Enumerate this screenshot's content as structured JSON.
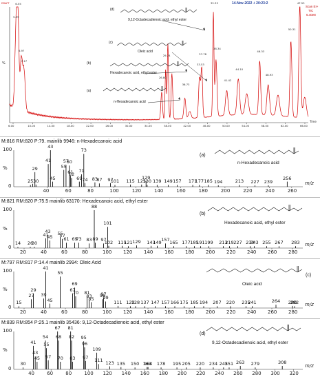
{
  "chromatogram": {
    "title_tag": "DRAFT",
    "date": "14-Nov-2022 + 20:23:2",
    "legend": [
      "Scan EI+",
      "TIC",
      "6.40e8"
    ],
    "x_ticks": [
      "6.00",
      "10.00",
      "14.00",
      "18.00",
      "22.00",
      "26.00",
      "30.00",
      "34.00",
      "38.00",
      "42.00",
      "46.00",
      "50.00",
      "54.00",
      "58.00",
      "62.00",
      "66.00"
    ],
    "x_unit": "Time",
    "y_tick": "%",
    "peak_labels": [
      {
        "t": 3.4,
        "text": "5.39"
      },
      {
        "t": 3.9,
        "text": "6.55"
      },
      {
        "t": 4.6,
        "text": "6.97"
      },
      {
        "t": 5.2,
        "text": "7.17"
      },
      {
        "t": 36.1,
        "text": "26.80"
      },
      {
        "t": 37.0,
        "text": "29.74"
      },
      {
        "t": 41.3,
        "text": "36.73"
      },
      {
        "t": 44.6,
        "text": "33.53"
      },
      {
        "t": 45.1,
        "text": "37.78"
      },
      {
        "t": 47.7,
        "text": "32.33"
      },
      {
        "t": 48.3,
        "text": "38.34"
      },
      {
        "t": 50.7,
        "text": "41.42"
      },
      {
        "t": 53.3,
        "text": "44.10"
      },
      {
        "t": 58.1,
        "text": "46.33"
      },
      {
        "t": 60.0,
        "text": "48.93"
      },
      {
        "t": 65.1,
        "text": "50.31"
      },
      {
        "t": 67.1,
        "text": "47.53"
      }
    ],
    "annotations": [
      {
        "tag": "(d)",
        "name": "9,12-Octadecadienoic acid, ethyl ester"
      },
      {
        "tag": "(c)",
        "name": "Oleic acid"
      },
      {
        "tag": "(b)",
        "name": "Hexadecanoic acid, ethyl ester"
      },
      {
        "tag": "(a)",
        "name": "n-Hexadecanoic acid"
      }
    ]
  },
  "chart_data": [
    {
      "type": "bar",
      "title": "M:816 RM:820 P:79. mainlib 9946: n-Hexadecanoic acid",
      "tag": "(a)",
      "compound": "n-Hexadecanoic acid",
      "x": [
        25,
        27,
        29,
        30,
        41,
        43,
        45,
        55,
        57,
        60,
        61,
        62,
        69,
        71,
        73,
        74,
        83,
        87,
        97,
        101,
        115,
        125,
        129,
        130,
        139,
        149,
        157,
        171,
        177,
        185,
        194,
        213,
        227,
        239,
        256
      ],
      "values": [
        5,
        8,
        40,
        6,
        62,
        100,
        14,
        46,
        60,
        58,
        30,
        24,
        14,
        34,
        90,
        10,
        12,
        9,
        10,
        5,
        6,
        6,
        16,
        5,
        5,
        5,
        5,
        5,
        5,
        5,
        4,
        5,
        4,
        4,
        14
      ],
      "labels": [
        "25",
        "",
        "29",
        "30",
        "41",
        "43",
        "45",
        "55",
        "57",
        "60",
        "61",
        "62",
        "69",
        "71",
        "73",
        "74",
        "83",
        "87",
        "97",
        "101",
        "115",
        "125",
        "129",
        "130",
        "139",
        "149",
        "157",
        "171",
        "177",
        "185",
        "194",
        "213",
        "227",
        "239",
        "256"
      ],
      "xlim": [
        10,
        270
      ],
      "x_ticks": [
        40,
        60,
        80,
        100,
        120,
        140,
        160,
        180,
        200,
        220,
        240,
        260
      ],
      "y_ticks": [
        "100",
        "%",
        "0"
      ],
      "xlabel": "m/z"
    },
    {
      "type": "bar",
      "title": "M:821 RM:820 P:75.5 mainlib 63170: Hexadecanoic acid, ethyl ester",
      "tag": "(b)",
      "compound": "Hexadecanoic acid, ethyl ester",
      "x": [
        14,
        26,
        30,
        41,
        43,
        45,
        55,
        57,
        61,
        69,
        73,
        83,
        88,
        89,
        97,
        101,
        102,
        115,
        121,
        129,
        143,
        149,
        157,
        165,
        177,
        185,
        191,
        199,
        213,
        219,
        227,
        239,
        243,
        255,
        267,
        283
      ],
      "values": [
        3,
        3,
        3,
        26,
        34,
        20,
        30,
        24,
        14,
        14,
        14,
        12,
        100,
        14,
        12,
        56,
        6,
        6,
        5,
        7,
        6,
        6,
        12,
        5,
        5,
        5,
        5,
        5,
        5,
        5,
        5,
        5,
        5,
        5,
        5,
        5
      ],
      "labels": [
        "14",
        "26",
        "30",
        "41",
        "43",
        "45",
        "55",
        "57",
        "61",
        "69",
        "73",
        "83",
        "88",
        "89",
        "97",
        "101",
        "102",
        "115",
        "121",
        "129",
        "143",
        "149",
        "157",
        "165",
        "177",
        "185",
        "191",
        "199",
        "213",
        "219",
        "227",
        "239",
        "243",
        "255",
        "267",
        "283"
      ],
      "xlim": [
        10,
        290
      ],
      "x_ticks": [
        20,
        40,
        60,
        80,
        100,
        120,
        140,
        160,
        180,
        200,
        220,
        240,
        260,
        280
      ],
      "y_ticks": [
        "100",
        "%",
        "0"
      ],
      "xlabel": "m/z"
    },
    {
      "type": "bar",
      "title": "M:797 RM:817 P:14.4 mainlib 2994: Oleic Acid",
      "tag": "(c)",
      "compound": "Oleic acid",
      "x": [
        15,
        27,
        29,
        39,
        41,
        45,
        55,
        67,
        69,
        70,
        81,
        83,
        85,
        96,
        97,
        99,
        111,
        123,
        128,
        137,
        147,
        157,
        166,
        175,
        185,
        194,
        207,
        220,
        235,
        241,
        264,
        280,
        282
      ],
      "values": [
        5,
        24,
        40,
        26,
        100,
        12,
        86,
        40,
        56,
        32,
        32,
        22,
        16,
        24,
        28,
        18,
        6,
        5,
        5,
        5,
        5,
        5,
        5,
        5,
        5,
        5,
        5,
        5,
        5,
        5,
        9,
        6,
        5
      ],
      "labels": [
        "15",
        "27",
        "29",
        "39",
        "41",
        "45",
        "55",
        "67",
        "69",
        "70",
        "81",
        "83",
        "85",
        "96",
        "97",
        "99",
        "111",
        "123",
        "128",
        "137",
        "147",
        "157",
        "166",
        "175",
        "185",
        "194",
        "207",
        "220",
        "235",
        "241",
        "264",
        "280",
        "282"
      ],
      "xlim": [
        10,
        290
      ],
      "x_ticks": [
        20,
        40,
        60,
        80,
        100,
        120,
        140,
        160,
        180,
        200,
        220,
        240,
        260,
        280
      ],
      "y_ticks": [
        "100",
        "%",
        "0"
      ],
      "xlabel": "m/z"
    },
    {
      "type": "bar",
      "title": "M:839 RM:854 P:25.1 mainlib 35436: 9,12-Octadecadienoic acid, ethyl ester",
      "tag": "(d)",
      "compound": "9,12-Octadecadienoic acid, ethyl ester",
      "x": [
        30,
        41,
        43,
        45,
        54,
        55,
        57,
        67,
        68,
        70,
        81,
        82,
        83,
        95,
        96,
        97,
        109,
        111,
        123,
        135,
        150,
        163,
        164,
        178,
        195,
        205,
        220,
        234,
        245,
        251,
        263,
        279,
        308
      ],
      "values": [
        5,
        62,
        34,
        20,
        76,
        56,
        24,
        100,
        76,
        20,
        100,
        76,
        20,
        74,
        58,
        22,
        44,
        14,
        8,
        6,
        5,
        6,
        6,
        5,
        5,
        5,
        5,
        5,
        5,
        5,
        9,
        5,
        9
      ],
      "labels": [
        "30",
        "41",
        "43",
        "45",
        "54",
        "55",
        "57",
        "67",
        "68",
        "70",
        "81",
        "82",
        "83",
        "95",
        "96",
        "97",
        "109",
        "111",
        "123",
        "135",
        "150",
        "163",
        "164",
        "178",
        "195",
        "205",
        "220",
        "234",
        "245",
        "251",
        "263",
        "279",
        "308"
      ],
      "xlim": [
        20,
        330
      ],
      "x_ticks": [
        40,
        60,
        80,
        100,
        120,
        140,
        160,
        180,
        200,
        220,
        240,
        260,
        280,
        300,
        320
      ],
      "y_ticks": [
        "100",
        "%",
        "0"
      ],
      "xlabel": "m/z"
    }
  ]
}
